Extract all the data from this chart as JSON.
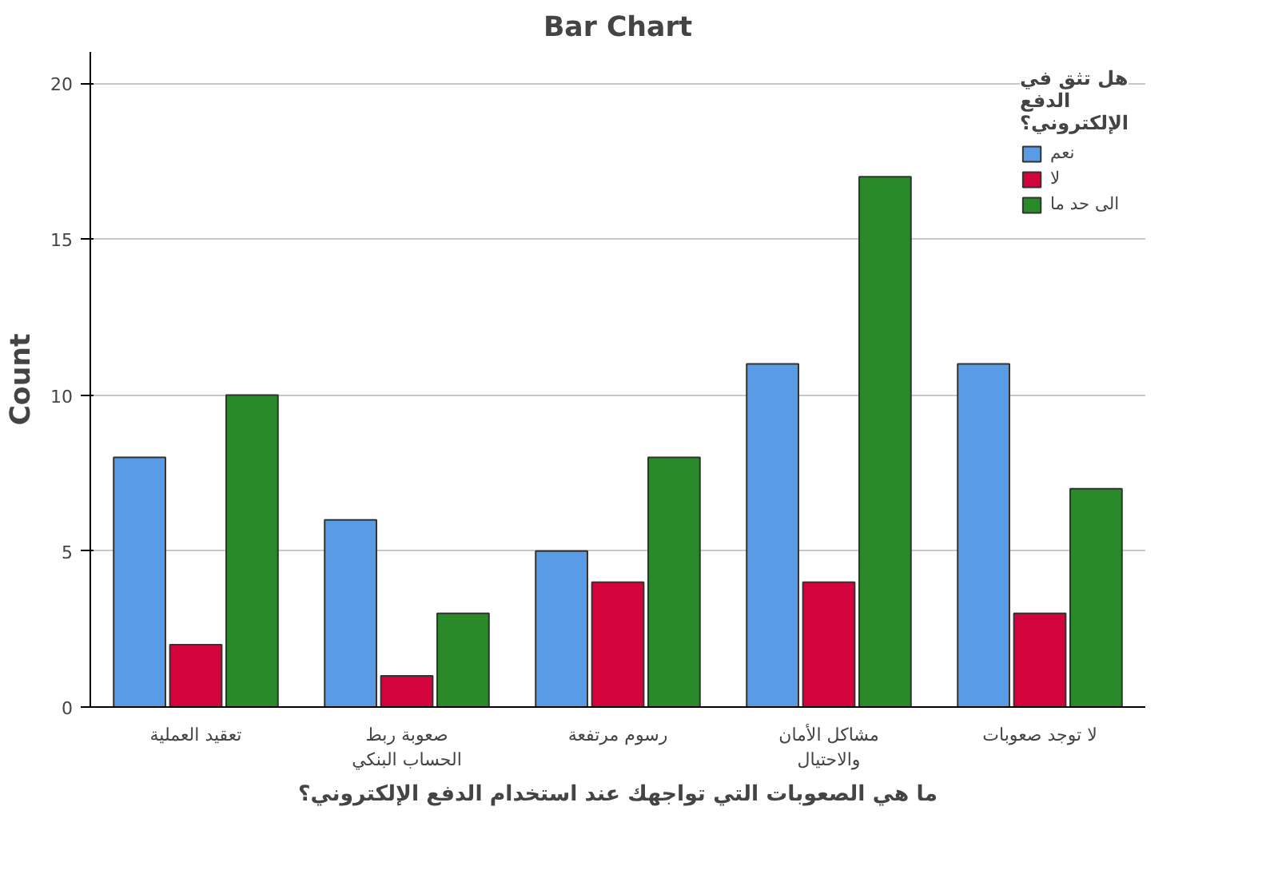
{
  "chart_data": {
    "type": "bar",
    "title": "Bar Chart",
    "xlabel": "ما هي الصعوبات التي تواجهك عند استخدام الدفع الإلكتروني؟",
    "ylabel": "Count",
    "legend_title": "هل تثق في\nالدفع\nالإلكتروني؟",
    "categories": [
      "تعقيد العملية",
      "صعوبة ربط\nالحساب البنكي",
      "رسوم مرتفعة",
      "مشاكل الأمان\nوالاحتيال",
      "لا توجد صعوبات"
    ],
    "series": [
      {
        "name": "نعم",
        "color": "#5a9be6",
        "values": [
          8,
          6,
          5,
          11,
          11
        ]
      },
      {
        "name": "لا",
        "color": "#d2043b",
        "values": [
          2,
          1,
          4,
          4,
          3
        ]
      },
      {
        "name": "الى حد ما",
        "color": "#2a8a2a",
        "values": [
          10,
          3,
          8,
          17,
          7
        ]
      }
    ],
    "ylim": [
      0,
      21
    ],
    "yticks": [
      0,
      5,
      10,
      15,
      20
    ],
    "grid": "y",
    "legend": "top right"
  }
}
